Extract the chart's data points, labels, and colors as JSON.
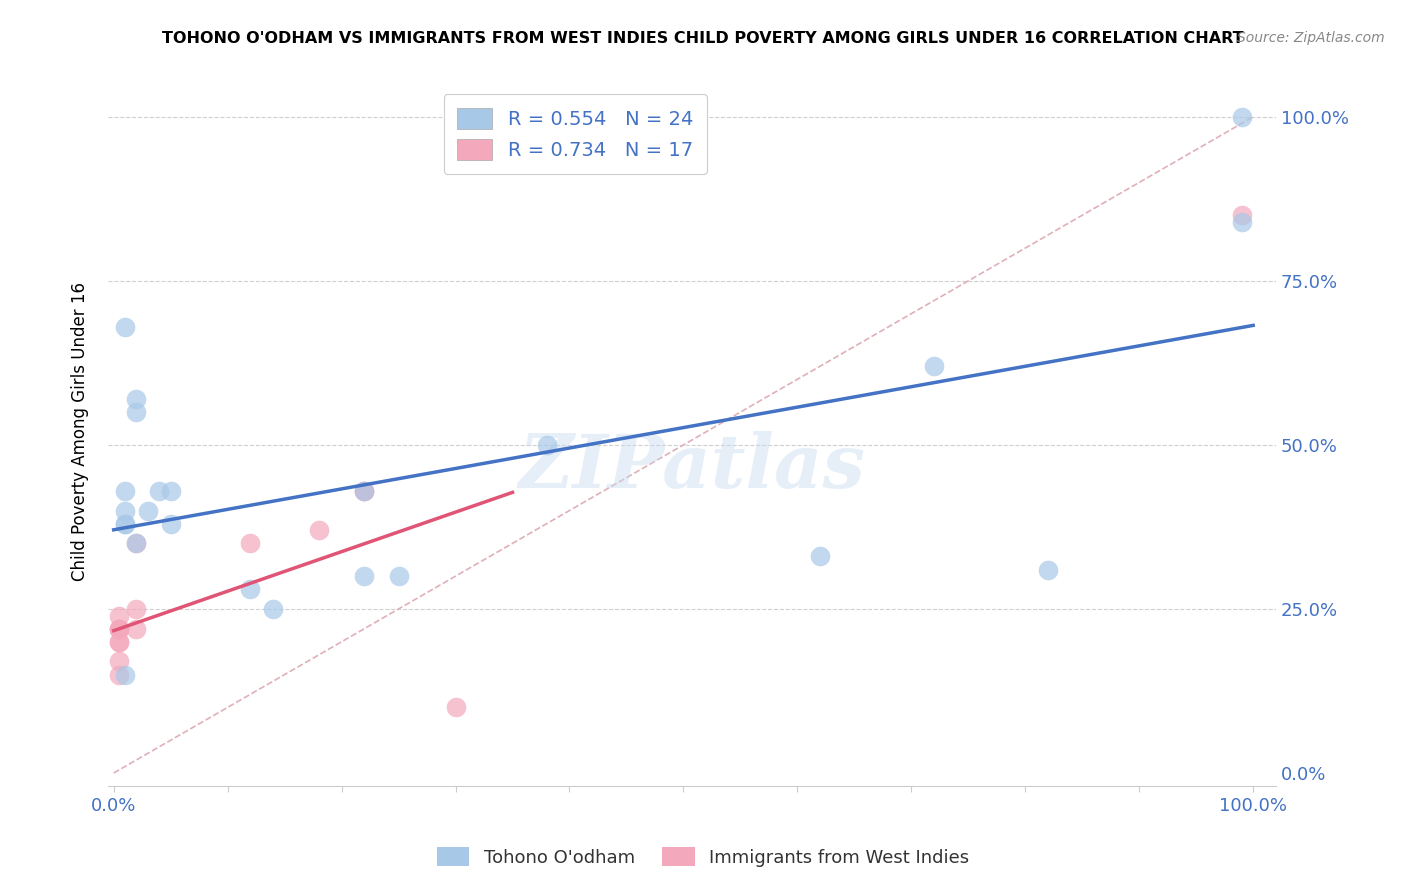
{
  "title": "TOHONO O'ODHAM VS IMMIGRANTS FROM WEST INDIES CHILD POVERTY AMONG GIRLS UNDER 16 CORRELATION CHART",
  "source": "Source: ZipAtlas.com",
  "ylabel": "Child Poverty Among Girls Under 16",
  "legend_label1": "Tohono O'odham",
  "legend_label2": "Immigrants from West Indies",
  "r1": 0.554,
  "n1": 24,
  "r2": 0.734,
  "n2": 17,
  "color1": "#a8c8e8",
  "color2": "#f4a8bc",
  "line_color1": "#4472c4",
  "line_color2": "#e05575",
  "ref_line_color": "#e0b0b8",
  "background_color": "#ffffff",
  "watermark": "ZIPatlas",
  "tohono_x": [
    0.01,
    0.02,
    0.02,
    0.04,
    0.05,
    0.02,
    0.01,
    0.01,
    0.01,
    0.12,
    0.14,
    0.22,
    0.22,
    0.25,
    0.62,
    0.72,
    0.82,
    0.99,
    0.99,
    0.38,
    0.01,
    0.01,
    0.03,
    0.05
  ],
  "tohono_y": [
    0.38,
    0.57,
    0.55,
    0.43,
    0.43,
    0.35,
    0.43,
    0.4,
    0.38,
    0.28,
    0.25,
    0.43,
    0.3,
    0.3,
    0.33,
    0.62,
    0.31,
    1.0,
    0.84,
    0.5,
    0.68,
    0.15,
    0.4,
    0.38
  ],
  "westindies_x": [
    0.005,
    0.005,
    0.005,
    0.005,
    0.005,
    0.005,
    0.005,
    0.005,
    0.02,
    0.02,
    0.02,
    0.12,
    0.18,
    0.22,
    0.22,
    0.3,
    0.99
  ],
  "westindies_y": [
    0.2,
    0.2,
    0.22,
    0.22,
    0.24,
    0.22,
    0.17,
    0.15,
    0.25,
    0.35,
    0.22,
    0.35,
    0.37,
    0.43,
    0.43,
    0.1,
    0.85
  ],
  "xlim": [
    0.0,
    1.0
  ],
  "ylim": [
    0.0,
    1.0
  ],
  "yticks": [
    0.0,
    0.25,
    0.5,
    0.75,
    1.0
  ],
  "xticks": [
    0.0,
    0.1,
    0.2,
    0.3,
    0.4,
    0.5,
    0.6,
    0.7,
    0.8,
    0.9,
    1.0
  ]
}
